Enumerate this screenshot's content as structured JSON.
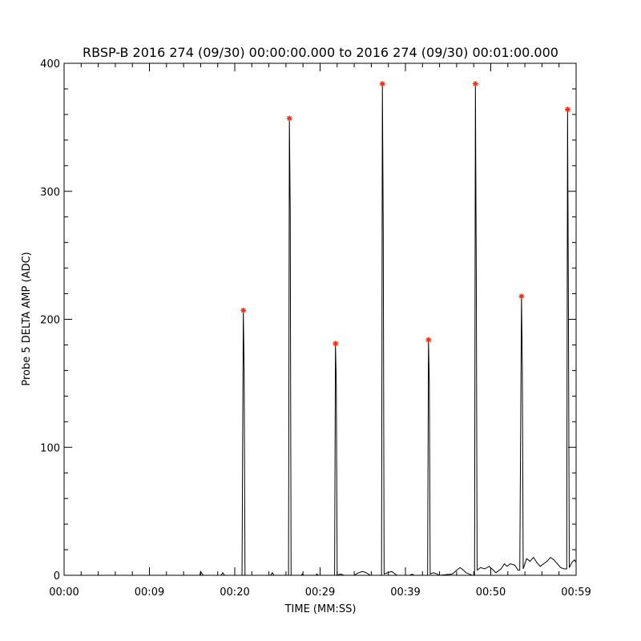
{
  "chart_data": {
    "type": "line",
    "title": "RBSP-B 2016 274 (09/30) 00:00:00.000 to 2016 274 (09/30) 00:01:00.000",
    "xlabel": "TIME (MM:SS)",
    "ylabel": "Probe 5 DELTA AMP (ADC)",
    "xlim": [
      0,
      60
    ],
    "ylim": [
      0,
      400
    ],
    "x_ticks": [
      {
        "value": 0,
        "label": "00:00"
      },
      {
        "value": 10,
        "label": "00:09"
      },
      {
        "value": 20,
        "label": "00:20"
      },
      {
        "value": 30,
        "label": "00:29"
      },
      {
        "value": 40,
        "label": "00:39"
      },
      {
        "value": 50,
        "label": "00:50"
      },
      {
        "value": 60,
        "label": "00:59"
      }
    ],
    "y_ticks": [
      {
        "value": 0,
        "label": "0"
      },
      {
        "value": 100,
        "label": "100"
      },
      {
        "value": 200,
        "label": "200"
      },
      {
        "value": 300,
        "label": "300"
      },
      {
        "value": 400,
        "label": "400"
      }
    ],
    "grid": false,
    "series": [
      {
        "style": "line",
        "color": "#000000",
        "points": [
          [
            0,
            0
          ],
          [
            15.9,
            0
          ],
          [
            16.0,
            3
          ],
          [
            16.2,
            1
          ],
          [
            16.3,
            0
          ],
          [
            18.4,
            0
          ],
          [
            18.6,
            2
          ],
          [
            18.8,
            0
          ],
          [
            20.85,
            0
          ],
          [
            21.0,
            207
          ],
          [
            21.1,
            160
          ],
          [
            21.2,
            0
          ],
          [
            24.2,
            0
          ],
          [
            24.4,
            2
          ],
          [
            24.6,
            0
          ],
          [
            26.3,
            0
          ],
          [
            26.4,
            357
          ],
          [
            26.5,
            285
          ],
          [
            26.6,
            0
          ],
          [
            27.8,
            0
          ],
          [
            27.9,
            1
          ],
          [
            28.0,
            0
          ],
          [
            29.5,
            0
          ],
          [
            29.6,
            1
          ],
          [
            29.8,
            0
          ],
          [
            31.7,
            0
          ],
          [
            31.8,
            181
          ],
          [
            31.9,
            150
          ],
          [
            32.0,
            0
          ],
          [
            32.4,
            1
          ],
          [
            32.8,
            0
          ],
          [
            34.0,
            0
          ],
          [
            34.5,
            2
          ],
          [
            35.0,
            3
          ],
          [
            35.4,
            2
          ],
          [
            35.9,
            0
          ],
          [
            37.2,
            0
          ],
          [
            37.3,
            384
          ],
          [
            37.4,
            268
          ],
          [
            37.5,
            1
          ],
          [
            37.9,
            2
          ],
          [
            38.4,
            3
          ],
          [
            38.8,
            1
          ],
          [
            39.0,
            0
          ],
          [
            40.5,
            0
          ],
          [
            40.8,
            1
          ],
          [
            41.0,
            0
          ],
          [
            42.6,
            0
          ],
          [
            42.7,
            184
          ],
          [
            42.8,
            150
          ],
          [
            42.9,
            1
          ],
          [
            43.3,
            2
          ],
          [
            43.7,
            1
          ],
          [
            44.0,
            0
          ],
          [
            45.5,
            1
          ],
          [
            46.0,
            4
          ],
          [
            46.4,
            6
          ],
          [
            46.8,
            4
          ],
          [
            47.1,
            2
          ],
          [
            47.5,
            1
          ],
          [
            47.8,
            0
          ],
          [
            48.1,
            0
          ],
          [
            48.2,
            384
          ],
          [
            48.3,
            240
          ],
          [
            48.4,
            4
          ],
          [
            48.8,
            6
          ],
          [
            49.3,
            5
          ],
          [
            49.8,
            7
          ],
          [
            50.3,
            4
          ],
          [
            50.6,
            2
          ],
          [
            51.2,
            5
          ],
          [
            51.6,
            9
          ],
          [
            51.9,
            7
          ],
          [
            52.3,
            9
          ],
          [
            52.8,
            8
          ],
          [
            53.2,
            4
          ],
          [
            53.4,
            4
          ],
          [
            53.6,
            218
          ],
          [
            53.7,
            160
          ],
          [
            53.8,
            5
          ],
          [
            54.2,
            13
          ],
          [
            54.6,
            11
          ],
          [
            55.0,
            14
          ],
          [
            55.4,
            10
          ],
          [
            55.8,
            7
          ],
          [
            56.2,
            9
          ],
          [
            56.6,
            11
          ],
          [
            57.0,
            14
          ],
          [
            57.4,
            12
          ],
          [
            57.8,
            9
          ],
          [
            58.2,
            6
          ],
          [
            58.6,
            5
          ],
          [
            58.9,
            5
          ],
          [
            59.0,
            364
          ],
          [
            59.1,
            210
          ],
          [
            59.2,
            6
          ],
          [
            59.5,
            10
          ],
          [
            59.8,
            12
          ],
          [
            60.0,
            10
          ]
        ]
      },
      {
        "style": "asterisk",
        "color": "#ff2200",
        "points": [
          [
            21.0,
            207
          ],
          [
            26.4,
            357
          ],
          [
            31.8,
            181
          ],
          [
            37.3,
            384
          ],
          [
            42.7,
            184
          ],
          [
            48.2,
            384
          ],
          [
            53.6,
            218
          ],
          [
            59.0,
            364
          ]
        ]
      }
    ]
  }
}
